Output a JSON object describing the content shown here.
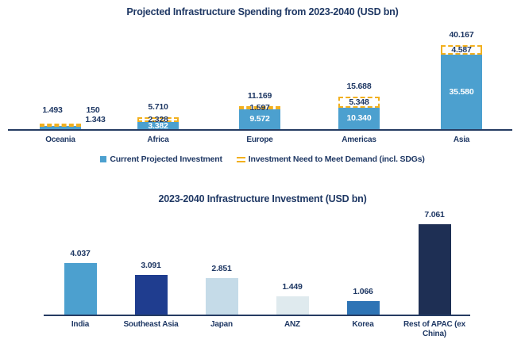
{
  "page": {
    "background": "#FFFFFF",
    "text_color": "#1F3864"
  },
  "chart_data": [
    {
      "type": "bar",
      "subtype": "stacked",
      "title": "Projected Infrastructure Spending from 2023-2040 (USD bn)",
      "categories": [
        "Oceania",
        "Africa",
        "Europe",
        "Americas",
        "Asia"
      ],
      "series": [
        {
          "name": "Current Projected Investment",
          "values": [
            1.343,
            3.382,
            9.572,
            10.34,
            35.58
          ],
          "labels": [
            "1.343",
            "3.382",
            "9.572",
            "10.340",
            "35.580"
          ],
          "color": "#4CA0CF",
          "marker": "square"
        },
        {
          "name": "Investment Need to Meet Demand (incl. SDGs)",
          "values": [
            0.15,
            2.328,
            1.597,
            5.348,
            4.587
          ],
          "labels": [
            "150",
            "2.328",
            "1.597",
            "5.348",
            "4.587"
          ],
          "color": "#F2B01E",
          "marker": "dashes"
        }
      ],
      "totals": {
        "values": [
          1.493,
          5.71,
          11.169,
          15.688,
          40.167
        ],
        "labels": [
          "1.493",
          "5.710",
          "11.169",
          "15.688",
          "40.167"
        ]
      },
      "legend_position": "bottom",
      "grid": false,
      "ylim": [
        0,
        42
      ]
    },
    {
      "type": "bar",
      "title": "2023-2040 Infrastructure Investment (USD bn)",
      "categories": [
        "India",
        "Southeast Asia",
        "Japan",
        "ANZ",
        "Korea",
        "Rest of APAC (ex China)"
      ],
      "values": [
        4.037,
        3.091,
        2.851,
        1.449,
        1.066,
        7.061
      ],
      "labels": [
        "4.037",
        "3.091",
        "2.851",
        "1.449",
        "1.066",
        "7.061"
      ],
      "bar_colors": [
        "#4CA0CF",
        "#1F3D8F",
        "#C5DBE8",
        "#DFEAEE",
        "#2E74B5",
        "#1E2F54"
      ],
      "legend_position": "none",
      "grid": false,
      "ylim": [
        0,
        7.5
      ]
    }
  ]
}
